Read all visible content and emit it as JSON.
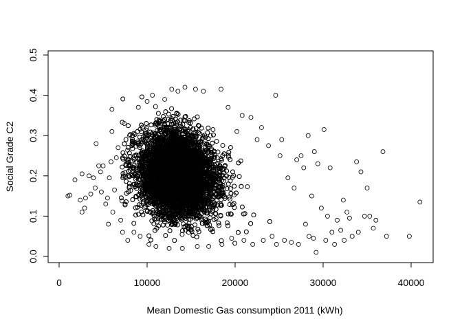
{
  "chart_data": {
    "type": "scatter",
    "title": "",
    "xlabel": "Mean Domestic Gas consumption 2011 (kWh)",
    "ylabel": "Social Grade C2",
    "xlim": [
      0,
      42000
    ],
    "ylim": [
      0,
      0.5
    ],
    "x_ticks": [
      0,
      10000,
      20000,
      30000,
      40000
    ],
    "x_tick_labels": [
      "0",
      "10000",
      "20000",
      "30000",
      "40000"
    ],
    "y_ticks": [
      0.0,
      0.1,
      0.2,
      0.3,
      0.4,
      0.5
    ],
    "y_tick_labels": [
      "0.0",
      "0.1",
      "0.2",
      "0.3",
      "0.4",
      "0.5"
    ],
    "marker": "open-circle",
    "grid": false,
    "legend": "none",
    "points": [
      [
        1000,
        0.15
      ],
      [
        1200,
        0.152
      ],
      [
        1800,
        0.19
      ],
      [
        2400,
        0.14
      ],
      [
        2600,
        0.205
      ],
      [
        2600,
        0.11
      ],
      [
        2900,
        0.12
      ],
      [
        3000,
        0.145
      ],
      [
        3400,
        0.2
      ],
      [
        3600,
        0.155
      ],
      [
        3900,
        0.195
      ],
      [
        4100,
        0.17
      ],
      [
        4200,
        0.28
      ],
      [
        4500,
        0.225
      ],
      [
        4700,
        0.21
      ],
      [
        4800,
        0.16
      ],
      [
        5000,
        0.225
      ],
      [
        5300,
        0.13
      ],
      [
        5500,
        0.145
      ],
      [
        5600,
        0.08
      ],
      [
        5700,
        0.195
      ],
      [
        5900,
        0.235
      ],
      [
        6000,
        0.365
      ],
      [
        6000,
        0.31
      ],
      [
        6100,
        0.11
      ],
      [
        6300,
        0.165
      ],
      [
        6500,
        0.245
      ],
      [
        6700,
        0.27
      ],
      [
        7000,
        0.09
      ],
      [
        7200,
        0.06
      ],
      [
        7400,
        0.33
      ],
      [
        7500,
        0.13
      ],
      [
        7800,
        0.04
      ],
      [
        8000,
        0.3
      ],
      [
        8500,
        0.06
      ],
      [
        9000,
        0.37
      ],
      [
        9200,
        0.05
      ],
      [
        10000,
        0.385
      ],
      [
        10200,
        0.03
      ],
      [
        10600,
        0.4
      ],
      [
        11000,
        0.025
      ],
      [
        12000,
        0.39
      ],
      [
        12500,
        0.02
      ],
      [
        12800,
        0.415
      ],
      [
        13500,
        0.41
      ],
      [
        14000,
        0.02
      ],
      [
        14300,
        0.42
      ],
      [
        15500,
        0.415
      ],
      [
        15700,
        0.025
      ],
      [
        16400,
        0.41
      ],
      [
        17000,
        0.025
      ],
      [
        18400,
        0.415
      ],
      [
        18500,
        0.03
      ],
      [
        19200,
        0.37
      ],
      [
        19600,
        0.045
      ],
      [
        20200,
        0.31
      ],
      [
        20800,
        0.35
      ],
      [
        21000,
        0.04
      ],
      [
        21800,
        0.345
      ],
      [
        22000,
        0.03
      ],
      [
        22500,
        0.29
      ],
      [
        23000,
        0.32
      ],
      [
        23200,
        0.04
      ],
      [
        23800,
        0.275
      ],
      [
        24200,
        0.05
      ],
      [
        24600,
        0.4
      ],
      [
        24700,
        0.03
      ],
      [
        25100,
        0.25
      ],
      [
        25300,
        0.29
      ],
      [
        25600,
        0.04
      ],
      [
        26000,
        0.195
      ],
      [
        26400,
        0.035
      ],
      [
        26700,
        0.17
      ],
      [
        27000,
        0.24
      ],
      [
        27200,
        0.03
      ],
      [
        27500,
        0.25
      ],
      [
        27800,
        0.22
      ],
      [
        28000,
        0.08
      ],
      [
        28300,
        0.3
      ],
      [
        28400,
        0.05
      ],
      [
        28700,
        0.15
      ],
      [
        28900,
        0.045
      ],
      [
        29000,
        0.26
      ],
      [
        29200,
        0.01
      ],
      [
        29400,
        0.23
      ],
      [
        29800,
        0.12
      ],
      [
        30100,
        0.315
      ],
      [
        30300,
        0.04
      ],
      [
        30500,
        0.1
      ],
      [
        30800,
        0.22
      ],
      [
        31000,
        0.06
      ],
      [
        31300,
        0.03
      ],
      [
        31600,
        0.09
      ],
      [
        32000,
        0.065
      ],
      [
        32300,
        0.14
      ],
      [
        32400,
        0.04
      ],
      [
        32700,
        0.11
      ],
      [
        33000,
        0.095
      ],
      [
        33300,
        0.05
      ],
      [
        33800,
        0.235
      ],
      [
        34000,
        0.06
      ],
      [
        34300,
        0.21
      ],
      [
        34700,
        0.1
      ],
      [
        35000,
        0.17
      ],
      [
        35300,
        0.1
      ],
      [
        35700,
        0.07
      ],
      [
        36000,
        0.09
      ],
      [
        36800,
        0.26
      ],
      [
        37200,
        0.05
      ],
      [
        39800,
        0.05
      ],
      [
        41000,
        0.135
      ]
    ],
    "dense_region": {
      "center": [
        13500,
        0.21
      ],
      "x_sd": 2600,
      "y_sd": 0.07,
      "approx_count": 12000
    }
  }
}
